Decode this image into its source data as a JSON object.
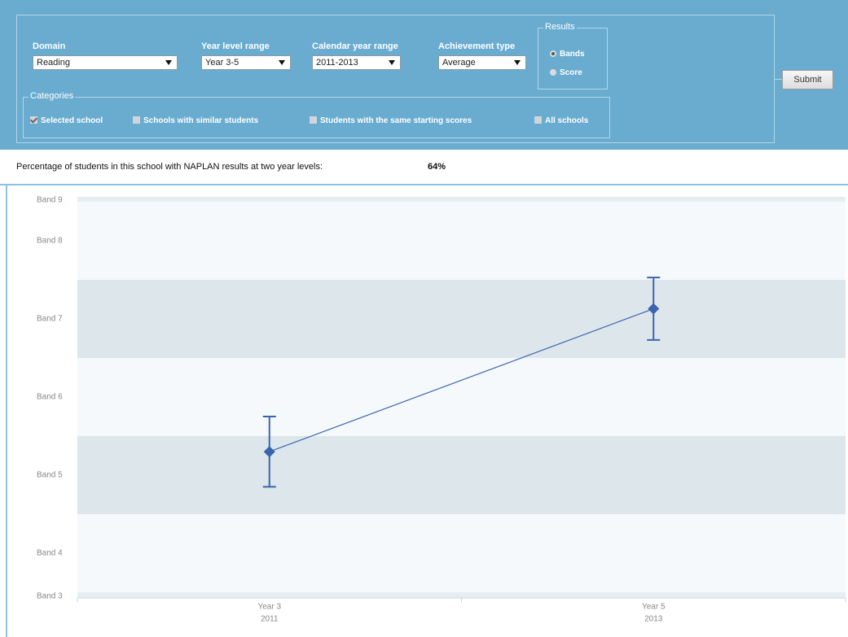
{
  "form": {
    "fields": [
      {
        "label": "Domain",
        "value": "Reading"
      },
      {
        "label": "Year level range",
        "value": "Year 3-5"
      },
      {
        "label": "Calendar year range",
        "value": "2011-2013"
      },
      {
        "label": "Achievement type",
        "value": "Average"
      }
    ],
    "results": {
      "legend": "Results",
      "options": [
        {
          "label": "Bands",
          "checked": true
        },
        {
          "label": "Score",
          "checked": false
        }
      ]
    },
    "categories": {
      "legend": "Categories",
      "options": [
        {
          "label": "Selected school",
          "checked": true
        },
        {
          "label": "Schools with similar students",
          "checked": false
        },
        {
          "label": "Students with the same starting scores",
          "checked": false
        },
        {
          "label": "All schools",
          "checked": false
        }
      ]
    },
    "submit": "Submit"
  },
  "summary": {
    "label": "Percentage of students in this school with NAPLAN results at two year levels:",
    "value": "64%"
  },
  "chart_data": {
    "type": "line",
    "categories": [
      "Year 3",
      "Year 5"
    ],
    "category_years": [
      "2011",
      "2013"
    ],
    "series": [
      {
        "name": "Selected school",
        "color": "#3a64b0",
        "values": [
          5.3,
          7.13
        ],
        "error": [
          0.45,
          0.4
        ]
      }
    ],
    "ylim": [
      3.5,
      8.5
    ],
    "yticks": [
      {
        "value": 3.5,
        "label": "Band 3"
      },
      {
        "value": 4,
        "label": "Band 4"
      },
      {
        "value": 5,
        "label": "Band 5"
      },
      {
        "value": 6,
        "label": "Band 6"
      },
      {
        "value": 7,
        "label": "Band 7"
      },
      {
        "value": 8,
        "label": "Band 8"
      },
      {
        "value": 8.5,
        "label": "Band 9"
      }
    ],
    "band_shading": true
  }
}
